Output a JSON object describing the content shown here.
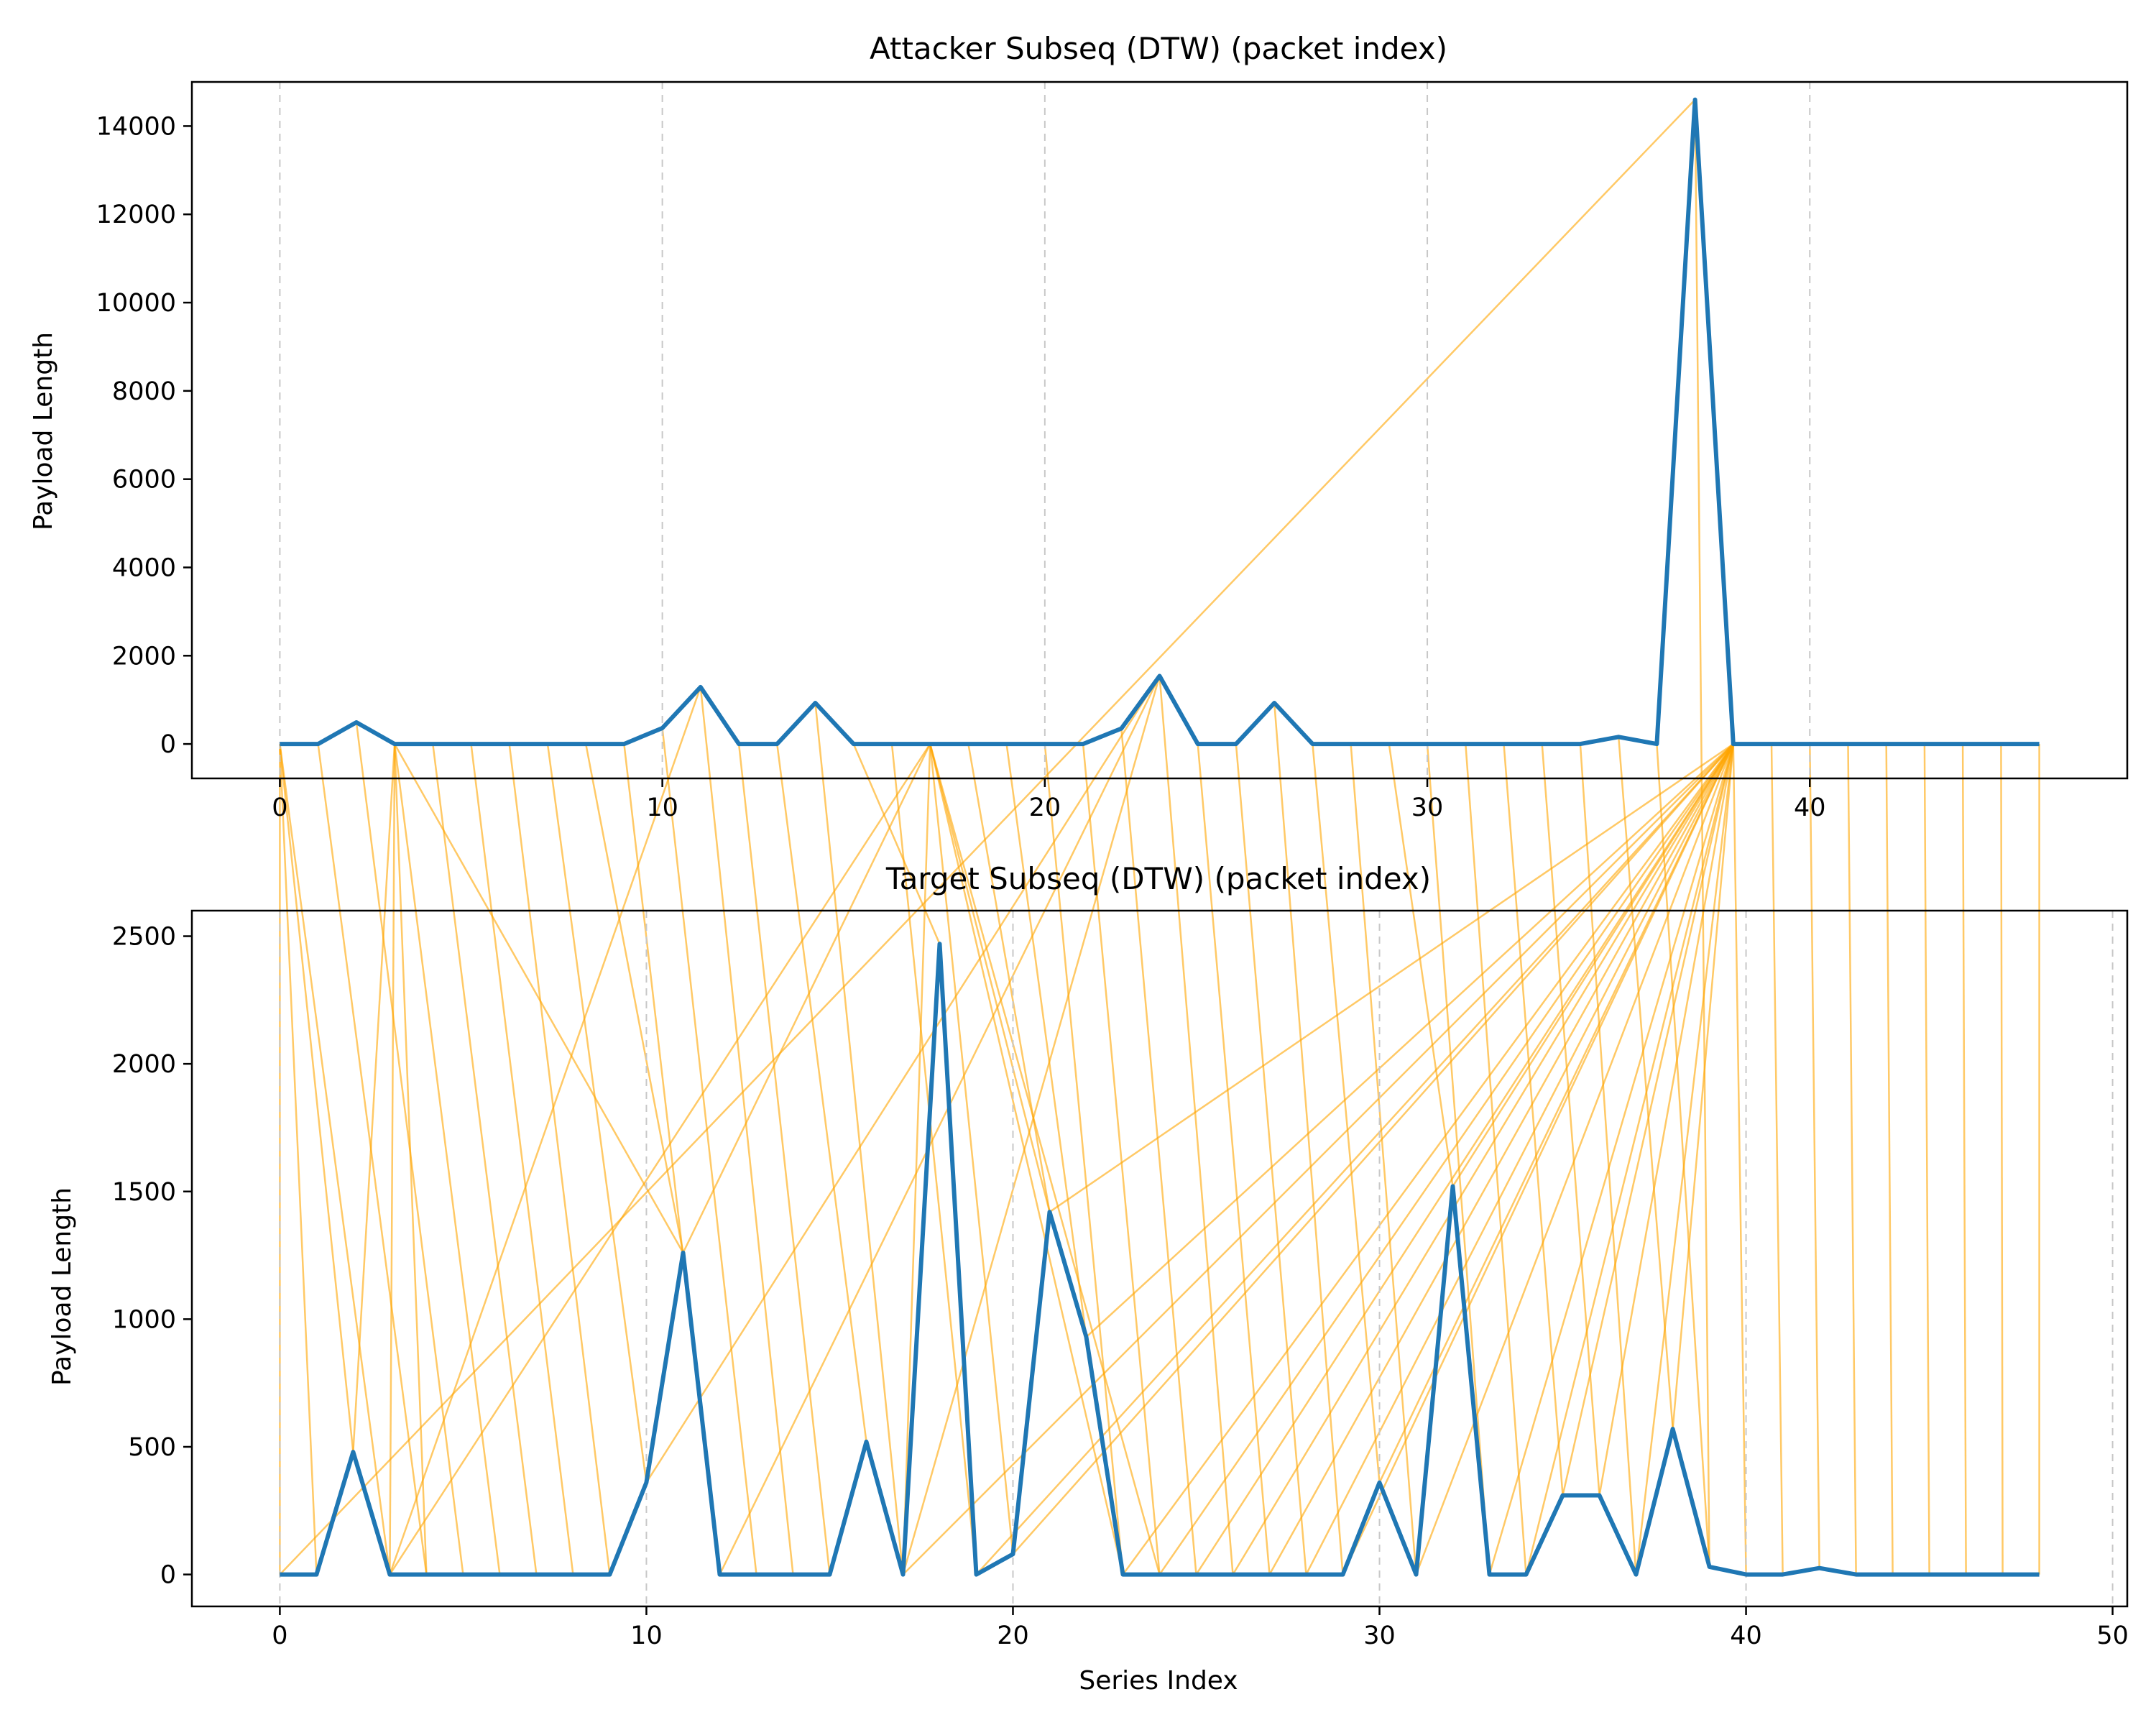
{
  "chart_data": [
    {
      "type": "line",
      "title": "Attacker Subseq (DTW) (packet index)",
      "xlabel": "",
      "ylabel": "Payload Length",
      "xlim": [
        -2.3,
        48.3
      ],
      "ylim": [
        -780,
        15000
      ],
      "xticks": [
        0,
        10,
        20,
        30,
        40
      ],
      "yticks": [
        0,
        2000,
        4000,
        6000,
        8000,
        10000,
        12000,
        14000
      ],
      "grid": "x-dashed",
      "x": [
        0,
        1,
        2,
        3,
        4,
        5,
        6,
        7,
        8,
        9,
        10,
        11,
        12,
        13,
        14,
        15,
        16,
        17,
        18,
        19,
        20,
        21,
        22,
        23,
        24,
        25,
        26,
        27,
        28,
        29,
        30,
        31,
        32,
        33,
        34,
        35,
        36,
        37,
        38,
        39,
        40,
        41,
        42,
        43,
        44,
        45,
        46
      ],
      "values": [
        0,
        0,
        490,
        0,
        0,
        0,
        0,
        0,
        0,
        0,
        360,
        1290,
        0,
        0,
        930,
        0,
        0,
        0,
        0,
        0,
        0,
        0,
        350,
        1540,
        0,
        0,
        930,
        0,
        0,
        0,
        0,
        0,
        0,
        0,
        0,
        160,
        0,
        14600,
        0,
        0,
        0,
        0,
        0,
        0,
        0,
        0,
        0
      ]
    },
    {
      "type": "line",
      "title": "Target Subseq (DTW) (packet index)",
      "xlabel": "Series Index",
      "ylabel": "Payload Length",
      "xlim": [
        -2.4,
        50.4
      ],
      "ylim": [
        -125,
        2600
      ],
      "xticks": [
        0,
        10,
        20,
        30,
        40,
        50
      ],
      "yticks": [
        0,
        500,
        1000,
        1500,
        2000,
        2500
      ],
      "grid": "x-dashed",
      "x": [
        0,
        1,
        2,
        3,
        4,
        5,
        6,
        7,
        8,
        9,
        10,
        11,
        12,
        13,
        14,
        15,
        16,
        17,
        18,
        19,
        20,
        21,
        22,
        23,
        24,
        25,
        26,
        27,
        28,
        29,
        30,
        31,
        32,
        33,
        34,
        35,
        36,
        37,
        38,
        39,
        40,
        41,
        42,
        43,
        44,
        45,
        46,
        47,
        48
      ],
      "values": [
        0,
        0,
        480,
        0,
        0,
        0,
        0,
        0,
        0,
        0,
        360,
        1260,
        0,
        0,
        0,
        0,
        520,
        0,
        2470,
        0,
        80,
        1420,
        930,
        0,
        0,
        0,
        0,
        0,
        0,
        0,
        360,
        0,
        1520,
        0,
        0,
        310,
        310,
        0,
        570,
        30,
        0,
        0,
        25,
        0,
        0,
        0,
        0,
        0,
        0
      ]
    }
  ],
  "dtw_path": [
    [
      0,
      0
    ],
    [
      0,
      1
    ],
    [
      0,
      2
    ],
    [
      0,
      3
    ],
    [
      1,
      4
    ],
    [
      2,
      5
    ],
    [
      3,
      6
    ],
    [
      4,
      7
    ],
    [
      5,
      8
    ],
    [
      6,
      9
    ],
    [
      7,
      10
    ],
    [
      8,
      11
    ],
    [
      9,
      12
    ],
    [
      10,
      13
    ],
    [
      11,
      14
    ],
    [
      12,
      15
    ],
    [
      13,
      16
    ],
    [
      14,
      17
    ],
    [
      15,
      18
    ],
    [
      16,
      19
    ],
    [
      17,
      20
    ],
    [
      18,
      21
    ],
    [
      19,
      22
    ],
    [
      20,
      23
    ],
    [
      21,
      24
    ],
    [
      22,
      25
    ],
    [
      23,
      26
    ],
    [
      24,
      27
    ],
    [
      25,
      28
    ],
    [
      26,
      29
    ],
    [
      27,
      30
    ],
    [
      28,
      31
    ],
    [
      29,
      32
    ],
    [
      30,
      33
    ],
    [
      31,
      34
    ],
    [
      32,
      35
    ],
    [
      33,
      36
    ],
    [
      34,
      37
    ],
    [
      35,
      38
    ],
    [
      36,
      39
    ],
    [
      37,
      39
    ],
    [
      38,
      40
    ],
    [
      39,
      41
    ],
    [
      40,
      42
    ],
    [
      41,
      43
    ],
    [
      42,
      44
    ],
    [
      43,
      45
    ],
    [
      44,
      46
    ],
    [
      45,
      47
    ],
    [
      46,
      48
    ],
    [
      3,
      2
    ],
    [
      3,
      3
    ],
    [
      3,
      4
    ],
    [
      3,
      11
    ],
    [
      11,
      3
    ],
    [
      17,
      3
    ],
    [
      17,
      11
    ],
    [
      17,
      17
    ],
    [
      17,
      21
    ],
    [
      17,
      23
    ],
    [
      23,
      10
    ],
    [
      23,
      12
    ],
    [
      23,
      17
    ],
    [
      17,
      24
    ],
    [
      37,
      0
    ],
    [
      38,
      17
    ],
    [
      38,
      21
    ],
    [
      38,
      30
    ],
    [
      38,
      32
    ],
    [
      38,
      19
    ],
    [
      38,
      20
    ],
    [
      38,
      22
    ],
    [
      38,
      23
    ],
    [
      38,
      24
    ],
    [
      38,
      25
    ],
    [
      38,
      26
    ],
    [
      38,
      27
    ],
    [
      38,
      28
    ],
    [
      38,
      29
    ],
    [
      38,
      31
    ],
    [
      38,
      33
    ],
    [
      38,
      34
    ],
    [
      38,
      35
    ],
    [
      38,
      36
    ],
    [
      38,
      37
    ],
    [
      38,
      38
    ]
  ]
}
